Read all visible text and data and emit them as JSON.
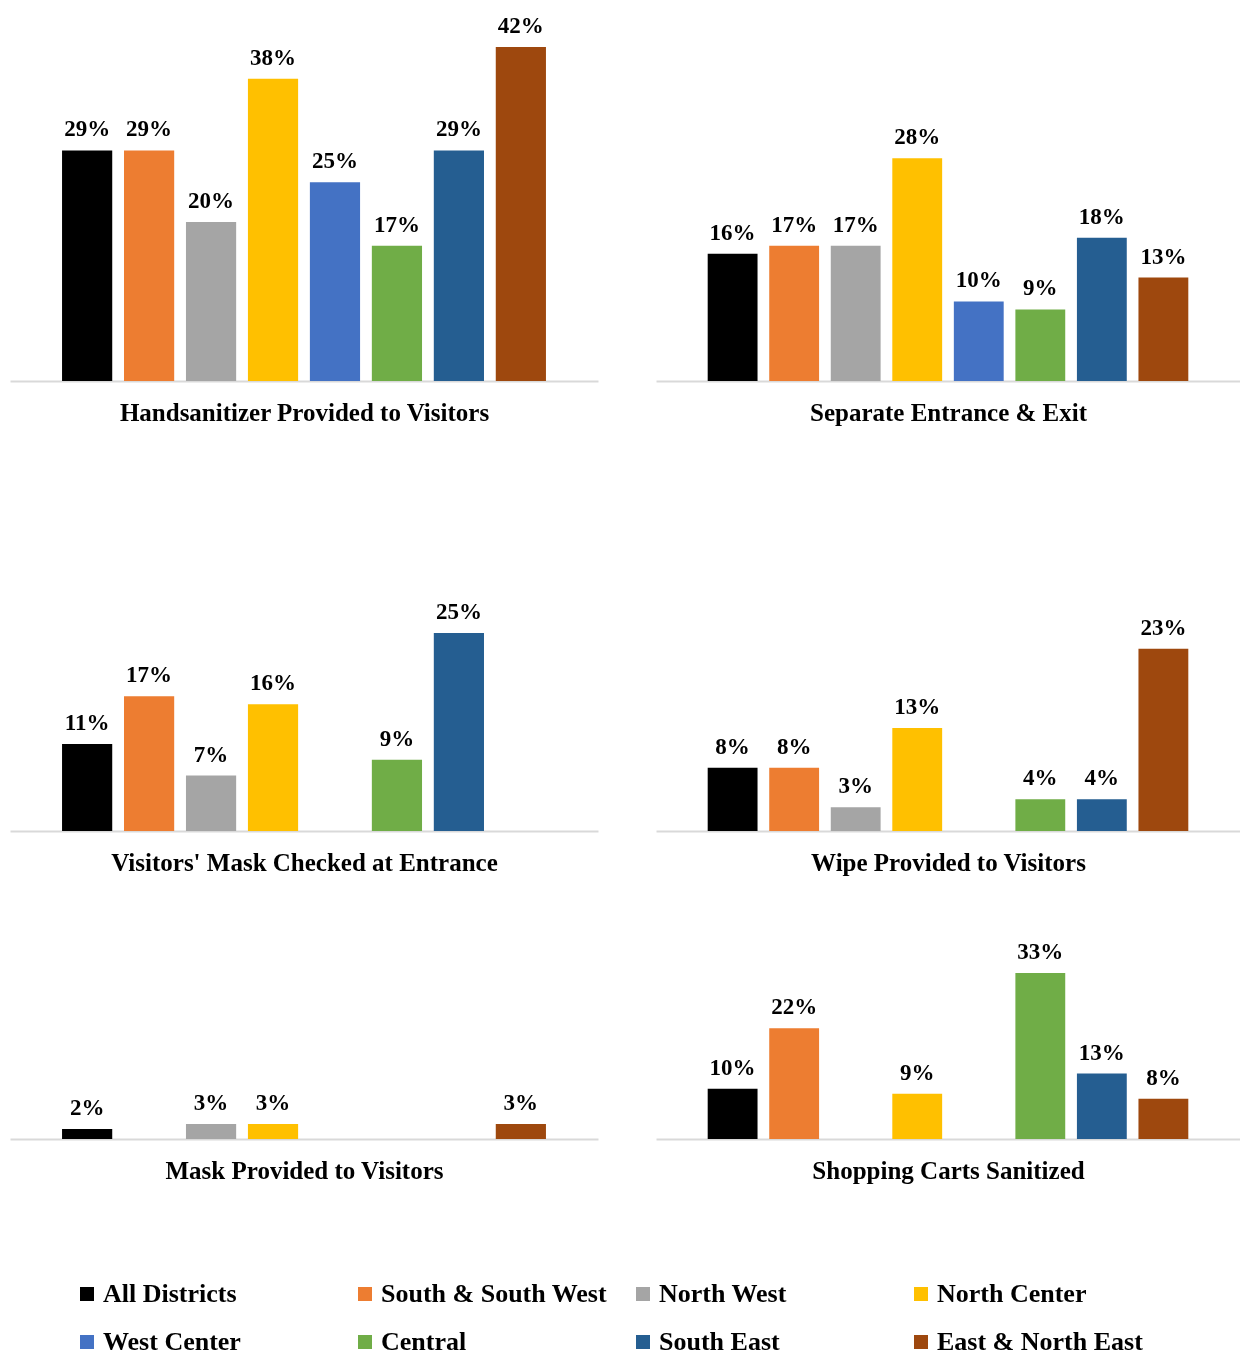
{
  "chart_data": [
    {
      "type": "bar",
      "xlabel": "Handsanitizer Provided to Visitors",
      "categories": [
        null
      ],
      "legend": "bottom",
      "series": [
        {
          "name": "All Districts",
          "color": "#000000",
          "values": [
            29
          ],
          "value_labels": [
            "29%"
          ]
        },
        {
          "name": "South & South West",
          "color": "#ed7d31",
          "values": [
            29
          ],
          "value_labels": [
            "29%"
          ]
        },
        {
          "name": "North West",
          "color": "#a5a5a5",
          "values": [
            20
          ],
          "value_labels": [
            "20%"
          ]
        },
        {
          "name": "North Center",
          "color": "#ffc000",
          "values": [
            38
          ],
          "value_labels": [
            "38%"
          ]
        },
        {
          "name": "West Center",
          "color": "#4472c4",
          "values": [
            25
          ],
          "value_labels": [
            "25%"
          ]
        },
        {
          "name": "Central",
          "color": "#70ad47",
          "values": [
            17
          ],
          "value_labels": [
            "17%"
          ]
        },
        {
          "name": "South East",
          "color": "#255e91",
          "values": [
            29
          ],
          "value_labels": [
            "29%"
          ]
        },
        {
          "name": "East & North East",
          "color": "#9e480e",
          "values": [
            42
          ],
          "value_labels": [
            "42%"
          ]
        }
      ]
    },
    {
      "type": "bar",
      "xlabel": "Separate Entrance & Exit",
      "categories": [
        null
      ],
      "series": [
        {
          "name": "All Districts",
          "color": "#000000",
          "values": [
            16
          ],
          "value_labels": [
            "16%"
          ]
        },
        {
          "name": "South & South West",
          "color": "#ed7d31",
          "values": [
            17
          ],
          "value_labels": [
            "17%"
          ]
        },
        {
          "name": "North West",
          "color": "#a5a5a5",
          "values": [
            17
          ],
          "value_labels": [
            "17%"
          ]
        },
        {
          "name": "North Center",
          "color": "#ffc000",
          "values": [
            28
          ],
          "value_labels": [
            "28%"
          ]
        },
        {
          "name": "West Center",
          "color": "#4472c4",
          "values": [
            10
          ],
          "value_labels": [
            "10%"
          ]
        },
        {
          "name": "Central",
          "color": "#70ad47",
          "values": [
            9
          ],
          "value_labels": [
            "9%"
          ]
        },
        {
          "name": "South East",
          "color": "#255e91",
          "values": [
            18
          ],
          "value_labels": [
            "18%"
          ]
        },
        {
          "name": "East & North East",
          "color": "#9e480e",
          "values": [
            13
          ],
          "value_labels": [
            "13%"
          ]
        }
      ]
    },
    {
      "type": "bar",
      "xlabel": "Visitors' Mask Checked at Entrance",
      "categories": [
        null
      ],
      "series": [
        {
          "name": "All Districts",
          "color": "#000000",
          "values": [
            11
          ],
          "value_labels": [
            "11%"
          ]
        },
        {
          "name": "South & South West",
          "color": "#ed7d31",
          "values": [
            17
          ],
          "value_labels": [
            "17%"
          ]
        },
        {
          "name": "North West",
          "color": "#a5a5a5",
          "values": [
            7
          ],
          "value_labels": [
            "7%"
          ]
        },
        {
          "name": "North Center",
          "color": "#ffc000",
          "values": [
            16
          ],
          "value_labels": [
            "16%"
          ]
        },
        {
          "name": "West Center",
          "values": [
            null
          ]
        },
        {
          "name": "Central",
          "color": "#70ad47",
          "values": [
            9
          ],
          "value_labels": [
            "9%"
          ]
        },
        {
          "name": "South East",
          "color": "#255e91",
          "values": [
            25
          ],
          "value_labels": [
            "25%"
          ]
        },
        {
          "name": "East & North East",
          "values": [
            null
          ]
        }
      ]
    },
    {
      "type": "bar",
      "xlabel": "Wipe Provided to Visitors",
      "categories": [
        null
      ],
      "series": [
        {
          "name": "All Districts",
          "color": "#000000",
          "values": [
            8
          ],
          "value_labels": [
            "8%"
          ]
        },
        {
          "name": "South & South West",
          "color": "#ed7d31",
          "values": [
            8
          ],
          "value_labels": [
            "8%"
          ]
        },
        {
          "name": "North West",
          "color": "#a5a5a5",
          "values": [
            3
          ],
          "value_labels": [
            "3%"
          ]
        },
        {
          "name": "North Center",
          "color": "#ffc000",
          "values": [
            13
          ],
          "value_labels": [
            "13%"
          ]
        },
        {
          "name": "West Center",
          "values": [
            null
          ]
        },
        {
          "name": "Central",
          "color": "#70ad47",
          "values": [
            4
          ],
          "value_labels": [
            "4%"
          ]
        },
        {
          "name": "South East",
          "color": "#255e91",
          "values": [
            4
          ],
          "value_labels": [
            "4%"
          ]
        },
        {
          "name": "East & North East",
          "color": "#9e480e",
          "values": [
            23
          ],
          "value_labels": [
            "23%"
          ]
        }
      ]
    },
    {
      "type": "bar",
      "xlabel": "Mask Provided to Visitors",
      "categories": [
        null
      ],
      "series": [
        {
          "name": "All Districts",
          "color": "#000000",
          "values": [
            2
          ],
          "value_labels": [
            "2%"
          ]
        },
        {
          "name": "South & South West",
          "values": [
            null
          ]
        },
        {
          "name": "North West",
          "color": "#a5a5a5",
          "values": [
            3
          ],
          "value_labels": [
            "3%"
          ]
        },
        {
          "name": "North Center",
          "color": "#ffc000",
          "values": [
            3
          ],
          "value_labels": [
            "3%"
          ]
        },
        {
          "name": "West Center",
          "values": [
            null
          ]
        },
        {
          "name": "Central",
          "values": [
            null
          ]
        },
        {
          "name": "South East",
          "values": [
            null
          ]
        },
        {
          "name": "East & North East",
          "color": "#9e480e",
          "values": [
            3
          ],
          "value_labels": [
            "3%"
          ]
        }
      ]
    },
    {
      "type": "bar",
      "xlabel": "Shopping Carts Sanitized",
      "categories": [
        null
      ],
      "series": [
        {
          "name": "All Districts",
          "color": "#000000",
          "values": [
            10
          ],
          "value_labels": [
            "10%"
          ]
        },
        {
          "name": "South & South West",
          "color": "#ed7d31",
          "values": [
            22
          ],
          "value_labels": [
            "22%"
          ]
        },
        {
          "name": "North West",
          "values": [
            null
          ]
        },
        {
          "name": "North Center",
          "color": "#ffc000",
          "values": [
            9
          ],
          "value_labels": [
            "9%"
          ]
        },
        {
          "name": "West Center",
          "values": [
            null
          ]
        },
        {
          "name": "Central",
          "color": "#70ad47",
          "values": [
            33
          ],
          "value_labels": [
            "33%"
          ]
        },
        {
          "name": "South East",
          "color": "#255e91",
          "values": [
            13
          ],
          "value_labels": [
            "13%"
          ]
        },
        {
          "name": "East & North East",
          "color": "#9e480e",
          "values": [
            8
          ],
          "value_labels": [
            "8%"
          ]
        }
      ]
    }
  ]
}
